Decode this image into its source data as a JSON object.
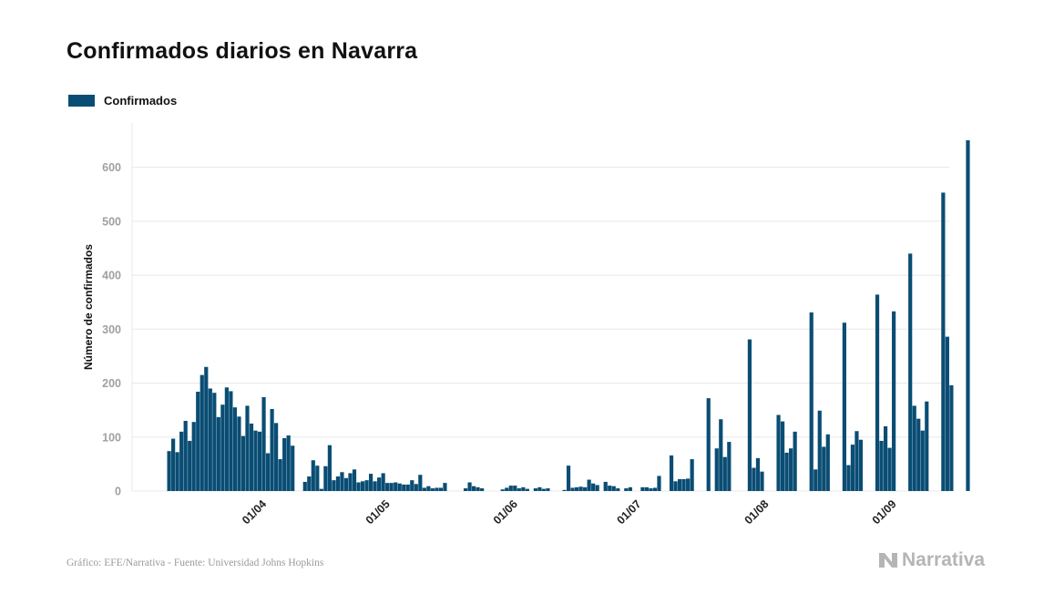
{
  "chart_data": {
    "type": "bar",
    "title": "Confirmados diarios en Navarra",
    "ylabel": "Número de confirmados",
    "xlabel": "",
    "ylim": [
      0,
      650
    ],
    "yticks": [
      0,
      100,
      200,
      300,
      400,
      500,
      600
    ],
    "grid": true,
    "legend_position": "top-left",
    "series": [
      {
        "name": "Confirmados",
        "color": "#0a4d74",
        "start_date": "2020-03-10",
        "values": [
          74,
          97,
          72,
          110,
          130,
          93,
          128,
          184,
          215,
          230,
          190,
          182,
          137,
          160,
          192,
          185,
          155,
          138,
          102,
          158,
          125,
          112,
          110,
          174,
          70,
          152,
          126,
          59,
          98,
          103,
          84,
          0,
          0,
          17,
          27,
          57,
          47,
          4,
          46,
          85,
          20,
          27,
          35,
          24,
          33,
          40,
          16,
          18,
          20,
          32,
          18,
          25,
          33,
          15,
          15,
          16,
          14,
          12,
          12,
          20,
          13,
          30,
          6,
          9,
          5,
          6,
          6,
          15,
          0,
          0,
          0,
          0,
          5,
          16,
          9,
          7,
          5,
          0,
          0,
          0,
          0,
          3,
          6,
          10,
          10,
          5,
          7,
          4,
          0,
          5,
          7,
          4,
          5,
          0,
          0,
          0,
          2,
          47,
          6,
          7,
          8,
          7,
          21,
          14,
          11,
          0,
          17,
          10,
          9,
          5,
          0,
          5,
          7,
          0,
          0,
          7,
          7,
          5,
          6,
          28,
          0,
          0,
          66,
          18,
          22,
          22,
          23,
          59,
          0,
          0,
          0,
          172,
          0,
          79,
          133,
          63,
          91,
          0,
          0,
          0,
          0,
          281,
          43,
          61,
          36,
          0,
          0,
          0,
          141,
          129,
          71,
          79,
          110,
          0,
          0,
          0,
          331,
          40,
          149,
          82,
          105,
          0,
          0,
          0,
          312,
          48,
          86,
          111,
          95,
          0,
          0,
          0,
          364,
          93,
          120,
          80,
          333,
          0,
          0,
          0,
          440,
          158,
          134,
          112,
          166,
          0,
          0,
          0,
          553,
          286,
          196,
          0,
          0,
          0,
          650
        ]
      }
    ],
    "categories_shown": [
      "01/04",
      "01/05",
      "01/06",
      "01/07",
      "01/08",
      "01/09"
    ],
    "tick_indices": [
      22,
      52,
      83,
      113,
      144,
      175
    ]
  },
  "legend": {
    "label": "Confirmados"
  },
  "footer": {
    "credit": "Gráfico: EFE/Narrativa - Fuente: Universidad Johns Hopkins"
  },
  "brand": {
    "name": "Narrativa",
    "icon": "narrativa-logo-icon"
  },
  "colors": {
    "bar": "#0a4d74",
    "grid": "#e8e8e8",
    "axis_text": "#a0a0a0"
  }
}
